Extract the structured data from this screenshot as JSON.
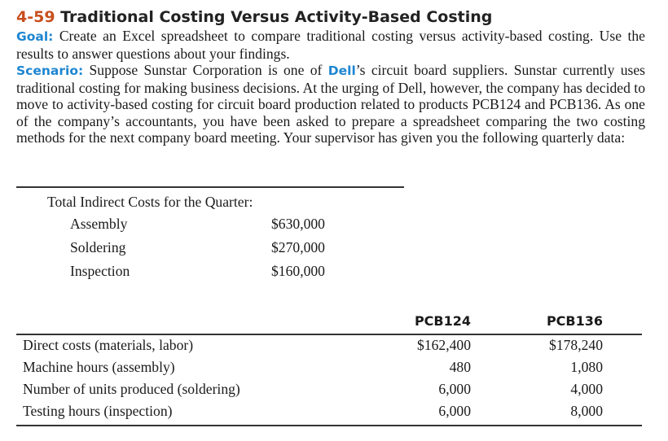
{
  "heading": {
    "number": "4-59",
    "title": "Traditional Costing Versus Activity-Based Costing"
  },
  "goal": {
    "label": "Goal:",
    "text": "Create an Excel spreadsheet to compare traditional costing versus activity-based costing. Use the results to answer questions about your findings."
  },
  "scenario": {
    "label": "Scenario:",
    "text_before": "Suppose Sunstar Corporation is one of",
    "brand": "Dell",
    "text_after": "’s circuit board suppliers. Sunstar currently uses traditional costing for making business decisions. At the urging of Dell, however, the company has decided to move to activity-based costing for circuit board production related to products PCB124 and PCB136. As one of the company’s accountants, you have been asked to prepare a spreadsheet comparing the two costing methods for the next company board meeting. Your supervisor has given you the following quarterly data:"
  },
  "indirect_costs": {
    "label": "Total Indirect Costs for the Quarter:",
    "rows": [
      {
        "name": "Assembly",
        "amount": "$630,000"
      },
      {
        "name": "Soldering",
        "amount": "$270,000"
      },
      {
        "name": "Inspection",
        "amount": "$160,000"
      }
    ]
  },
  "product_table": {
    "columns": [
      "PCB124",
      "PCB136"
    ],
    "rows": [
      {
        "label": "Direct costs (materials, labor)",
        "values": [
          "$162,400",
          "$178,240"
        ]
      },
      {
        "label": "Machine hours (assembly)",
        "values": [
          "480",
          "1,080"
        ]
      },
      {
        "label": "Number of units produced (soldering)",
        "values": [
          "6,000",
          "4,000"
        ]
      },
      {
        "label": "Testing hours (inspection)",
        "values": [
          "6,000",
          "8,000"
        ]
      }
    ]
  },
  "colors": {
    "heading_number": "#c8501e",
    "keyword": "#1e86d0"
  }
}
